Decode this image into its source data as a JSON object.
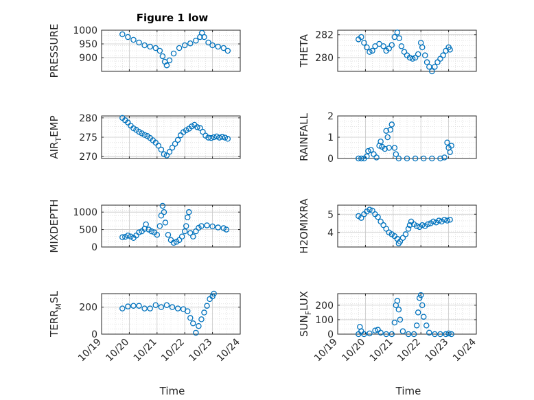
{
  "figure": {
    "title": "Figure 1 low",
    "xlabel": "Time",
    "x_ticks": [
      "10/19",
      "10/20",
      "10/21",
      "10/22",
      "10/23",
      "10/24"
    ]
  },
  "colors": {
    "marker": "#0072BD",
    "axis": "#262626",
    "grid": "#d9d9d9"
  },
  "chart_data": [
    {
      "type": "scatter",
      "title": "Figure 1 low",
      "xlabel": "",
      "ylabel": "PRESSURE",
      "ylabel_sub": "",
      "ylim": [
        850,
        1000
      ],
      "xlim": [
        0,
        5
      ],
      "x_ticks": [],
      "y_ticks": [
        {
          "v": 1000,
          "t": "1000"
        },
        {
          "v": 950,
          "t": "950"
        },
        {
          "v": 900,
          "t": "900"
        }
      ],
      "points": [
        [
          0.75,
          985
        ],
        [
          0.95,
          975
        ],
        [
          1.15,
          965
        ],
        [
          1.35,
          955
        ],
        [
          1.55,
          945
        ],
        [
          1.75,
          940
        ],
        [
          1.95,
          935
        ],
        [
          2.1,
          925
        ],
        [
          2.2,
          905
        ],
        [
          2.28,
          885
        ],
        [
          2.35,
          872
        ],
        [
          2.45,
          890
        ],
        [
          2.6,
          915
        ],
        [
          2.8,
          935
        ],
        [
          3.0,
          945
        ],
        [
          3.2,
          952
        ],
        [
          3.4,
          962
        ],
        [
          3.55,
          975
        ],
        [
          3.62,
          990
        ],
        [
          3.7,
          975
        ],
        [
          3.85,
          955
        ],
        [
          4.0,
          945
        ],
        [
          4.2,
          940
        ],
        [
          4.4,
          935
        ],
        [
          4.55,
          925
        ]
      ]
    },
    {
      "type": "scatter",
      "title": "",
      "xlabel": "",
      "ylabel": "THETA",
      "ylabel_sub": "",
      "ylim": [
        278.8,
        282.4
      ],
      "xlim": [
        0,
        5
      ],
      "x_ticks": [],
      "y_ticks": [
        {
          "v": 282,
          "t": "282"
        },
        {
          "v": 280,
          "t": "280"
        }
      ],
      "points": [
        [
          0.75,
          281.6
        ],
        [
          0.85,
          281.8
        ],
        [
          0.95,
          281.3
        ],
        [
          1.05,
          280.9
        ],
        [
          1.15,
          280.5
        ],
        [
          1.25,
          280.6
        ],
        [
          1.35,
          281.0
        ],
        [
          1.5,
          281.2
        ],
        [
          1.65,
          281.0
        ],
        [
          1.75,
          280.6
        ],
        [
          1.85,
          280.8
        ],
        [
          1.95,
          281.1
        ],
        [
          2.05,
          281.8
        ],
        [
          2.15,
          282.2
        ],
        [
          2.22,
          281.7
        ],
        [
          2.3,
          281.0
        ],
        [
          2.4,
          280.5
        ],
        [
          2.5,
          280.2
        ],
        [
          2.6,
          280.0
        ],
        [
          2.7,
          279.9
        ],
        [
          2.8,
          280.0
        ],
        [
          2.9,
          280.3
        ],
        [
          3.0,
          281.3
        ],
        [
          3.05,
          280.9
        ],
        [
          3.15,
          280.2
        ],
        [
          3.22,
          279.6
        ],
        [
          3.3,
          279.2
        ],
        [
          3.4,
          278.8
        ],
        [
          3.5,
          279.2
        ],
        [
          3.6,
          279.6
        ],
        [
          3.7,
          279.9
        ],
        [
          3.8,
          280.2
        ],
        [
          3.9,
          280.6
        ],
        [
          4.0,
          280.9
        ],
        [
          4.05,
          280.7
        ]
      ]
    },
    {
      "type": "scatter",
      "title": "",
      "xlabel": "",
      "ylabel": "AIR",
      "ylabel_sub": "T",
      "ylabel_rest": "EMP",
      "ylim": [
        269.5,
        280.5
      ],
      "xlim": [
        0,
        5
      ],
      "x_ticks": [],
      "y_ticks": [
        {
          "v": 280,
          "t": "280"
        },
        {
          "v": 275,
          "t": "275"
        },
        {
          "v": 270,
          "t": "270"
        }
      ],
      "points": [
        [
          0.75,
          280
        ],
        [
          0.85,
          279.4
        ],
        [
          0.95,
          278.8
        ],
        [
          1.05,
          278.0
        ],
        [
          1.15,
          277.3
        ],
        [
          1.25,
          276.9
        ],
        [
          1.35,
          276.4
        ],
        [
          1.45,
          276.0
        ],
        [
          1.55,
          275.6
        ],
        [
          1.65,
          275.3
        ],
        [
          1.75,
          274.8
        ],
        [
          1.85,
          274.2
        ],
        [
          1.95,
          273.6
        ],
        [
          2.05,
          272.8
        ],
        [
          2.15,
          271.8
        ],
        [
          2.25,
          270.6
        ],
        [
          2.35,
          270.3
        ],
        [
          2.45,
          271.2
        ],
        [
          2.55,
          272.3
        ],
        [
          2.65,
          273.3
        ],
        [
          2.75,
          274.3
        ],
        [
          2.85,
          275.5
        ],
        [
          2.95,
          276.3
        ],
        [
          3.05,
          276.8
        ],
        [
          3.15,
          277.2
        ],
        [
          3.25,
          277.8
        ],
        [
          3.35,
          278.2
        ],
        [
          3.45,
          277.6
        ],
        [
          3.55,
          277.4
        ],
        [
          3.65,
          276.4
        ],
        [
          3.75,
          275.4
        ],
        [
          3.85,
          274.9
        ],
        [
          3.95,
          274.8
        ],
        [
          4.05,
          275.0
        ],
        [
          4.15,
          275.2
        ],
        [
          4.25,
          274.9
        ],
        [
          4.35,
          275.1
        ],
        [
          4.45,
          274.9
        ],
        [
          4.55,
          274.6
        ]
      ]
    },
    {
      "type": "scatter",
      "title": "",
      "xlabel": "",
      "ylabel": "RAINFALL",
      "ylabel_sub": "",
      "ylim": [
        0,
        2
      ],
      "xlim": [
        0,
        5
      ],
      "x_ticks": [],
      "y_ticks": [
        {
          "v": 2,
          "t": "2"
        },
        {
          "v": 1,
          "t": "1"
        },
        {
          "v": 0,
          "t": "0"
        }
      ],
      "points": [
        [
          0.75,
          0
        ],
        [
          0.85,
          0
        ],
        [
          0.95,
          0
        ],
        [
          1.05,
          0.1
        ],
        [
          1.1,
          0.35
        ],
        [
          1.2,
          0.4
        ],
        [
          1.3,
          0.2
        ],
        [
          1.4,
          0.05
        ],
        [
          1.5,
          0.6
        ],
        [
          1.55,
          0.8
        ],
        [
          1.6,
          0.55
        ],
        [
          1.7,
          0.45
        ],
        [
          1.75,
          1.3
        ],
        [
          1.8,
          1.0
        ],
        [
          1.85,
          0.5
        ],
        [
          1.9,
          1.35
        ],
        [
          1.95,
          1.6
        ],
        [
          2.05,
          0.5
        ],
        [
          2.1,
          0.2
        ],
        [
          2.2,
          0
        ],
        [
          2.5,
          0
        ],
        [
          2.8,
          0
        ],
        [
          3.1,
          0
        ],
        [
          3.4,
          0
        ],
        [
          3.7,
          0
        ],
        [
          3.85,
          0.05
        ],
        [
          3.95,
          0.75
        ],
        [
          4.0,
          0.5
        ],
        [
          4.05,
          0.3
        ],
        [
          4.1,
          0.6
        ]
      ]
    },
    {
      "type": "scatter",
      "title": "",
      "xlabel": "",
      "ylabel": "MIXDEPTH",
      "ylabel_sub": "",
      "ylim": [
        0,
        1200
      ],
      "xlim": [
        0,
        5
      ],
      "x_ticks": [],
      "y_ticks": [
        {
          "v": 1000,
          "t": "1000"
        },
        {
          "v": 500,
          "t": "500"
        },
        {
          "v": 0,
          "t": "0"
        }
      ],
      "points": [
        [
          0.75,
          280
        ],
        [
          0.85,
          290
        ],
        [
          0.95,
          330
        ],
        [
          1.05,
          300
        ],
        [
          1.15,
          260
        ],
        [
          1.25,
          330
        ],
        [
          1.35,
          420
        ],
        [
          1.45,
          450
        ],
        [
          1.55,
          520
        ],
        [
          1.6,
          650
        ],
        [
          1.7,
          500
        ],
        [
          1.8,
          450
        ],
        [
          1.9,
          420
        ],
        [
          2.0,
          350
        ],
        [
          2.1,
          600
        ],
        [
          2.15,
          900
        ],
        [
          2.2,
          1180
        ],
        [
          2.25,
          1000
        ],
        [
          2.3,
          700
        ],
        [
          2.4,
          350
        ],
        [
          2.5,
          200
        ],
        [
          2.6,
          120
        ],
        [
          2.7,
          150
        ],
        [
          2.8,
          200
        ],
        [
          2.9,
          300
        ],
        [
          3.0,
          450
        ],
        [
          3.05,
          600
        ],
        [
          3.1,
          850
        ],
        [
          3.15,
          1000
        ],
        [
          3.2,
          400
        ],
        [
          3.3,
          300
        ],
        [
          3.4,
          450
        ],
        [
          3.5,
          550
        ],
        [
          3.6,
          600
        ],
        [
          3.8,
          620
        ],
        [
          4.0,
          590
        ],
        [
          4.2,
          560
        ],
        [
          4.4,
          540
        ],
        [
          4.5,
          500
        ]
      ]
    },
    {
      "type": "scatter",
      "title": "",
      "xlabel": "",
      "ylabel": "H2OMIXRA",
      "ylabel_sub": "",
      "ylim": [
        3.2,
        5.5
      ],
      "xlim": [
        0,
        5
      ],
      "x_ticks": [],
      "y_ticks": [
        {
          "v": 5,
          "t": "5"
        },
        {
          "v": 4,
          "t": "4"
        }
      ],
      "points": [
        [
          0.75,
          4.9
        ],
        [
          0.85,
          4.8
        ],
        [
          0.95,
          5.0
        ],
        [
          1.05,
          5.15
        ],
        [
          1.15,
          5.25
        ],
        [
          1.25,
          5.2
        ],
        [
          1.35,
          5.0
        ],
        [
          1.45,
          4.85
        ],
        [
          1.55,
          4.6
        ],
        [
          1.65,
          4.4
        ],
        [
          1.75,
          4.2
        ],
        [
          1.85,
          4.0
        ],
        [
          1.95,
          3.9
        ],
        [
          2.05,
          3.8
        ],
        [
          2.15,
          3.65
        ],
        [
          2.2,
          3.4
        ],
        [
          2.25,
          3.5
        ],
        [
          2.35,
          3.7
        ],
        [
          2.45,
          3.9
        ],
        [
          2.55,
          4.2
        ],
        [
          2.6,
          4.4
        ],
        [
          2.65,
          4.6
        ],
        [
          2.75,
          4.45
        ],
        [
          2.85,
          4.35
        ],
        [
          2.95,
          4.3
        ],
        [
          3.05,
          4.4
        ],
        [
          3.15,
          4.35
        ],
        [
          3.25,
          4.45
        ],
        [
          3.35,
          4.5
        ],
        [
          3.45,
          4.6
        ],
        [
          3.55,
          4.55
        ],
        [
          3.65,
          4.65
        ],
        [
          3.75,
          4.6
        ],
        [
          3.85,
          4.7
        ],
        [
          3.95,
          4.65
        ],
        [
          4.05,
          4.7
        ]
      ]
    },
    {
      "type": "scatter",
      "title": "",
      "xlabel": "Time",
      "ylabel": "TERR",
      "ylabel_sub": "M",
      "ylabel_rest": "SL",
      "ylim": [
        0,
        300
      ],
      "xlim": [
        0,
        5
      ],
      "x_ticks": [
        "10/19",
        "10/20",
        "10/21",
        "10/22",
        "10/23",
        "10/24"
      ],
      "y_ticks": [
        {
          "v": 200,
          "t": "200"
        },
        {
          "v": 0,
          "t": "0"
        }
      ],
      "points": [
        [
          0.75,
          190
        ],
        [
          0.95,
          205
        ],
        [
          1.15,
          210
        ],
        [
          1.35,
          210
        ],
        [
          1.55,
          190
        ],
        [
          1.75,
          190
        ],
        [
          1.95,
          215
        ],
        [
          2.15,
          200
        ],
        [
          2.35,
          215
        ],
        [
          2.55,
          200
        ],
        [
          2.75,
          190
        ],
        [
          2.95,
          185
        ],
        [
          3.1,
          170
        ],
        [
          3.2,
          120
        ],
        [
          3.3,
          80
        ],
        [
          3.4,
          10
        ],
        [
          3.5,
          60
        ],
        [
          3.6,
          110
        ],
        [
          3.7,
          160
        ],
        [
          3.8,
          210
        ],
        [
          3.9,
          260
        ],
        [
          4.0,
          280
        ],
        [
          4.05,
          300
        ]
      ]
    },
    {
      "type": "scatter",
      "title": "",
      "xlabel": "Time",
      "ylabel": "SUN",
      "ylabel_sub": "F",
      "ylabel_rest": "LUX",
      "ylim": [
        0,
        280
      ],
      "xlim": [
        0,
        5
      ],
      "x_ticks": [
        "10/19",
        "10/20",
        "10/21",
        "10/22",
        "10/23",
        "10/24"
      ],
      "y_ticks": [
        {
          "v": 200,
          "t": "200"
        },
        {
          "v": 100,
          "t": "100"
        },
        {
          "v": 0,
          "t": "0"
        }
      ],
      "points": [
        [
          0.75,
          0
        ],
        [
          0.8,
          50
        ],
        [
          0.85,
          20
        ],
        [
          0.95,
          0
        ],
        [
          1.15,
          5
        ],
        [
          1.35,
          25
        ],
        [
          1.45,
          30
        ],
        [
          1.55,
          10
        ],
        [
          1.75,
          0
        ],
        [
          1.95,
          0
        ],
        [
          2.05,
          80
        ],
        [
          2.1,
          200
        ],
        [
          2.15,
          230
        ],
        [
          2.2,
          170
        ],
        [
          2.25,
          100
        ],
        [
          2.35,
          20
        ],
        [
          2.55,
          0
        ],
        [
          2.75,
          0
        ],
        [
          2.85,
          60
        ],
        [
          2.9,
          150
        ],
        [
          2.95,
          250
        ],
        [
          3.0,
          270
        ],
        [
          3.05,
          200
        ],
        [
          3.1,
          120
        ],
        [
          3.2,
          60
        ],
        [
          3.3,
          10
        ],
        [
          3.5,
          0
        ],
        [
          3.7,
          0
        ],
        [
          3.9,
          0
        ],
        [
          4.0,
          5
        ],
        [
          4.1,
          0
        ]
      ]
    }
  ]
}
